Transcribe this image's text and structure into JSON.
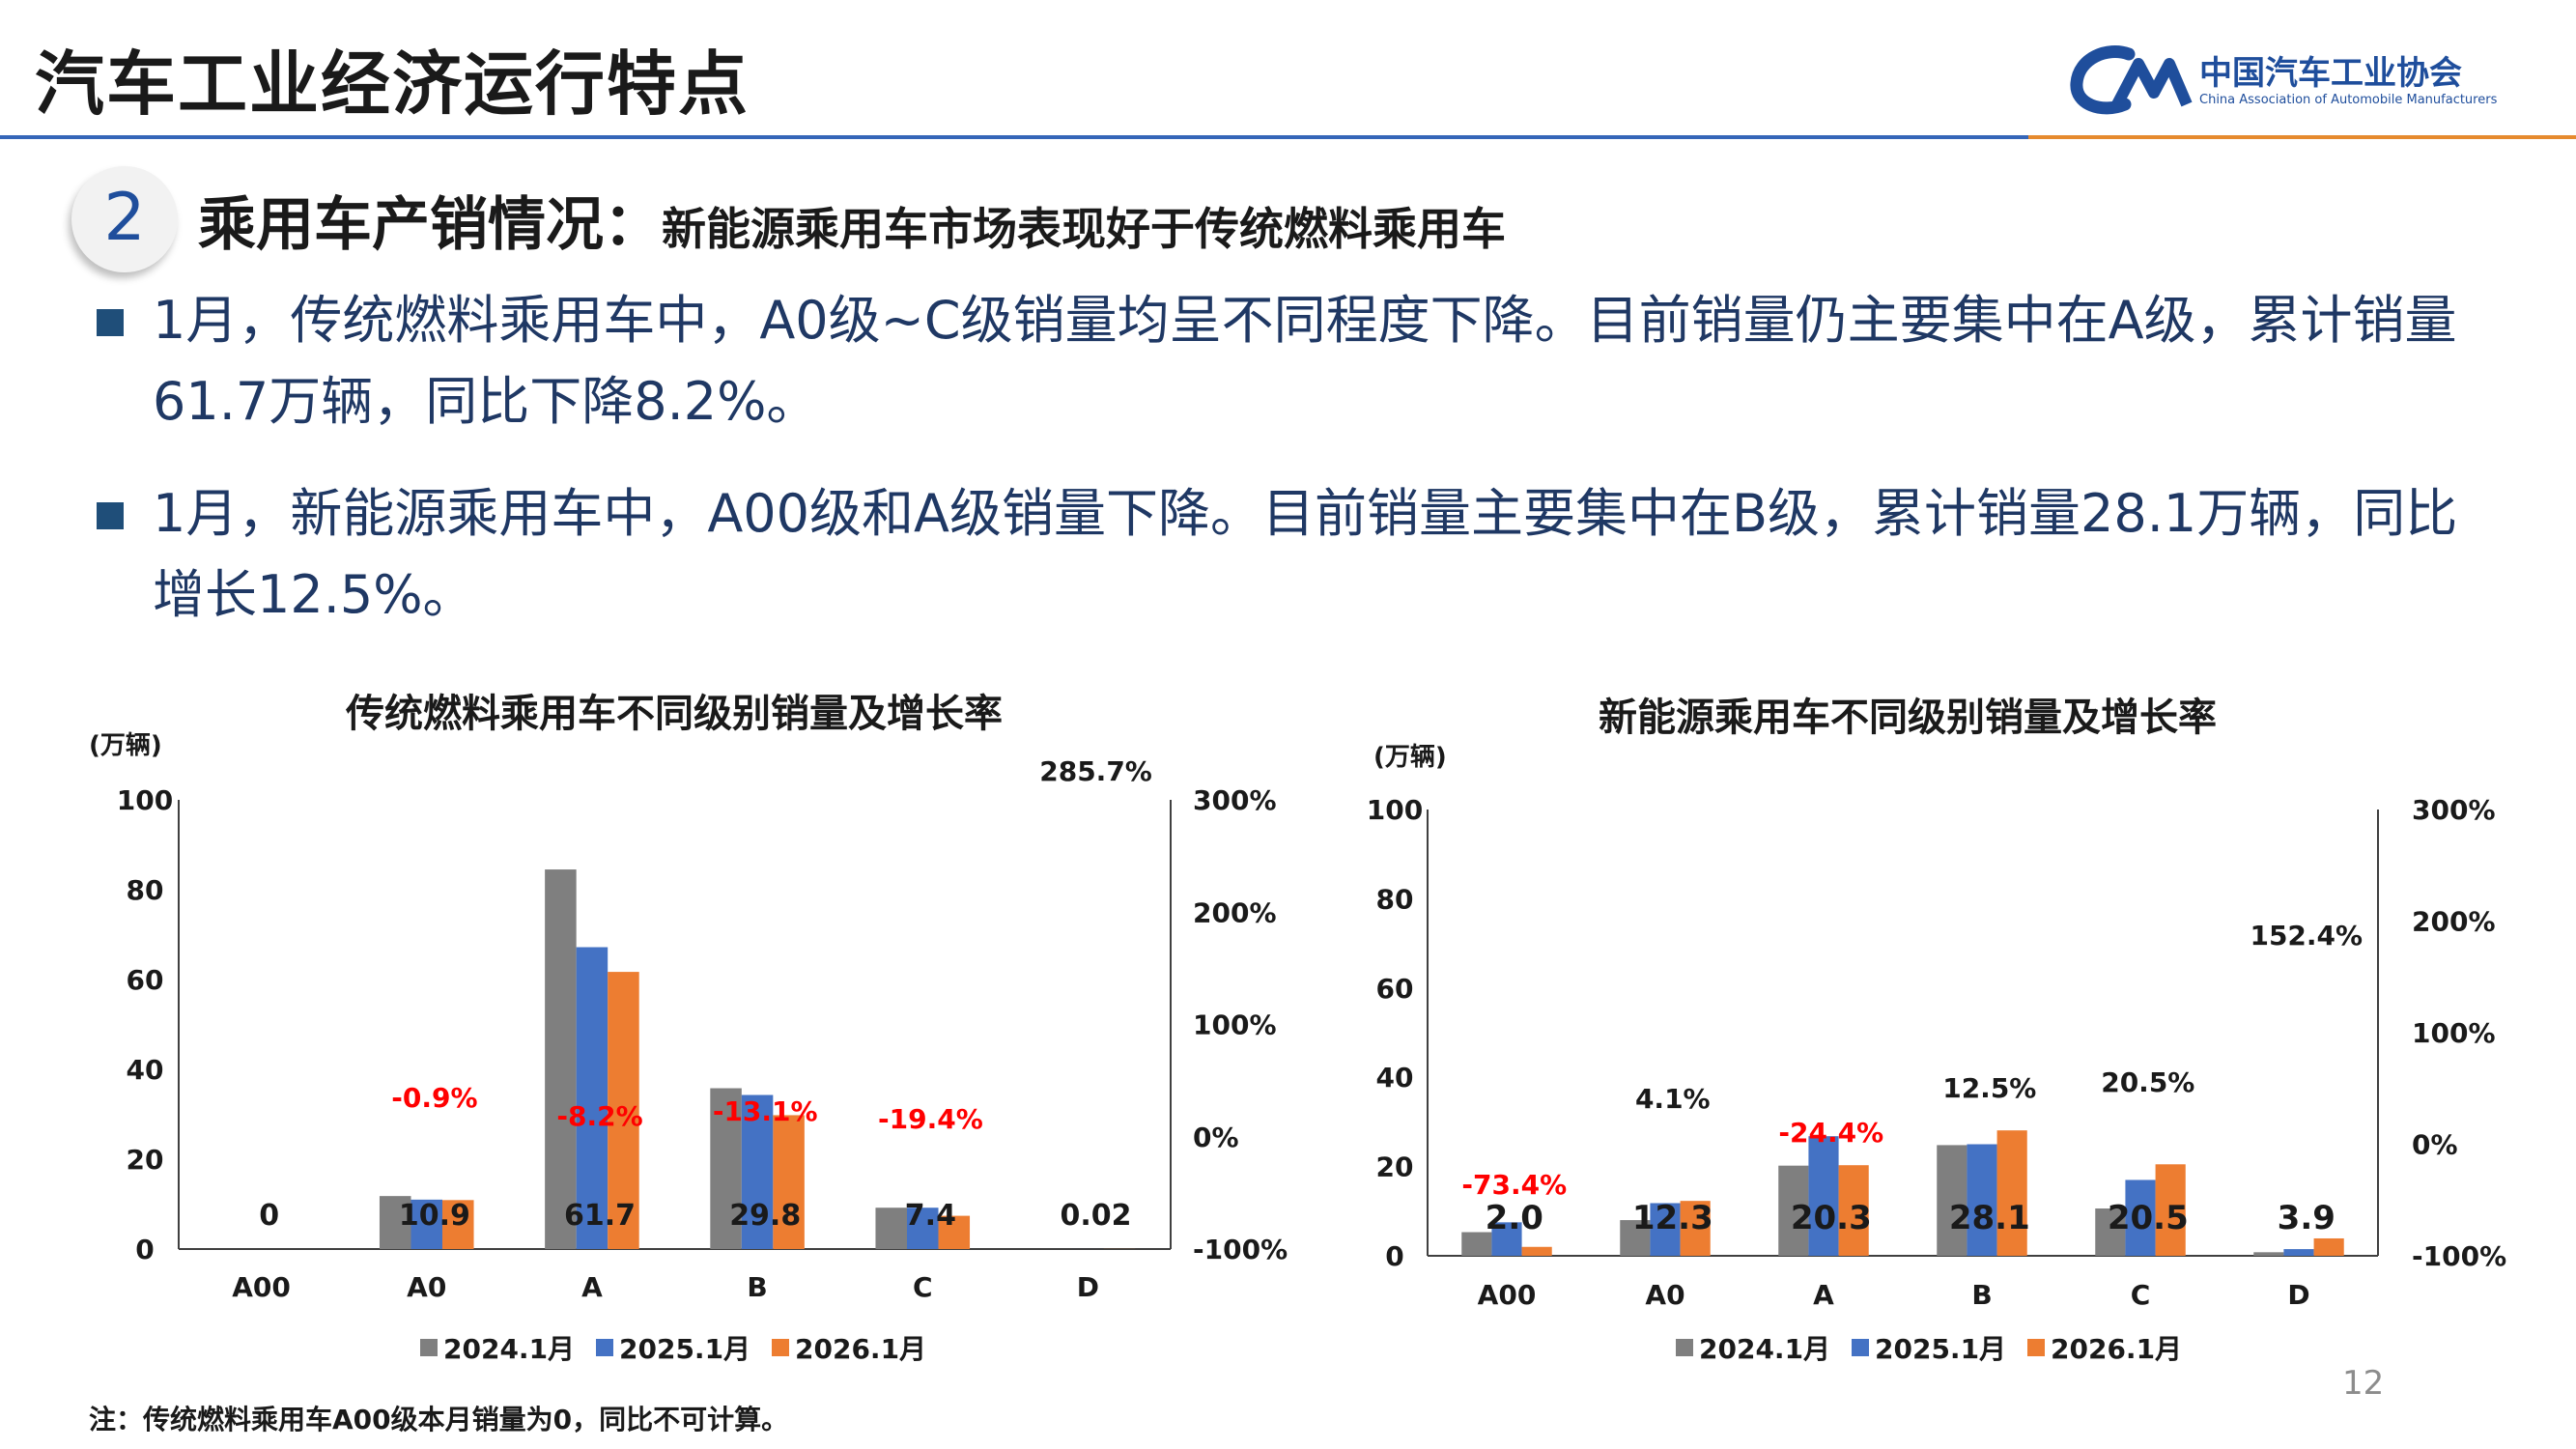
{
  "header": {
    "title": "汽车工业经济运行特点",
    "logo_cn": "中国汽车工业协会",
    "logo_en": "China Association of Automobile Manufacturers"
  },
  "section": {
    "number": "2",
    "title": "乘用车产销情况：",
    "subtitle": "新能源乘用车市场表现好于传统燃料乘用车"
  },
  "bullets": [
    "1月，传统燃料乘用车中，A0级~C级销量均呈不同程度下降。目前销量仍主要集中在A级，累计销量61.7万辆，同比下降8.2%。",
    "1月，新能源乘用车中，A00级和A级销量下降。目前销量主要集中在B级，累计销量28.1万辆，同比增长12.5%。"
  ],
  "colors": {
    "s2024": "#7f7f7f",
    "s2025": "#4472c4",
    "s2026": "#ed7d31",
    "negative": "#ff0000",
    "positive": "#1a1a1a"
  },
  "chart_data": [
    {
      "type": "bar",
      "title": "传统燃料乘用车不同级别销量及增长率",
      "ylabel": "(万辆)",
      "ylim": [
        0,
        100
      ],
      "yticks": [
        "0",
        "20",
        "40",
        "60",
        "80",
        "100"
      ],
      "y2lim": [
        -100,
        300
      ],
      "y2ticks": [
        "-100%",
        "0%",
        "100%",
        "200%",
        "300%"
      ],
      "categories": [
        "A00",
        "A0",
        "A",
        "B",
        "C",
        "D"
      ],
      "series": [
        {
          "name": "2024.1月",
          "values": [
            0,
            11.8,
            84.5,
            35.8,
            9.2,
            0.01
          ]
        },
        {
          "name": "2025.1月",
          "values": [
            0,
            11.0,
            67.2,
            34.3,
            9.2,
            0.005
          ]
        },
        {
          "name": "2026.1月",
          "values": [
            0,
            10.9,
            61.7,
            29.8,
            7.4,
            0.02
          ]
        }
      ],
      "value_labels": [
        "0",
        "10.9",
        "61.7",
        "29.8",
        "7.4",
        "0.02"
      ],
      "growth_labels": [
        "",
        "-0.9%",
        "-8.2%",
        "-13.1%",
        "-19.4%",
        "285.7%"
      ],
      "growth_values": [
        null,
        -0.9,
        -8.2,
        -13.1,
        -19.4,
        285.7
      ],
      "legend_position": "bottom"
    },
    {
      "type": "bar",
      "title": "新能源乘用车不同级别销量及增长率",
      "ylabel": "(万辆)",
      "ylim": [
        0,
        100
      ],
      "yticks": [
        "0",
        "20",
        "40",
        "60",
        "80",
        "100"
      ],
      "y2lim": [
        -100,
        300
      ],
      "y2ticks": [
        "-100%",
        "0%",
        "100%",
        "200%",
        "300%"
      ],
      "categories": [
        "A00",
        "A0",
        "A",
        "B",
        "C",
        "D"
      ],
      "series": [
        {
          "name": "2024.1月",
          "values": [
            5.3,
            8.0,
            20.2,
            24.8,
            10.6,
            0.8
          ]
        },
        {
          "name": "2025.1月",
          "values": [
            7.5,
            11.8,
            26.8,
            25.0,
            17.0,
            1.5
          ]
        },
        {
          "name": "2026.1月",
          "values": [
            2.0,
            12.3,
            20.3,
            28.1,
            20.5,
            3.9
          ]
        }
      ],
      "value_labels": [
        "2.0",
        "12.3",
        "20.3",
        "28.1",
        "20.5",
        "3.9"
      ],
      "growth_labels": [
        "-73.4%",
        "4.1%",
        "-24.4%",
        "12.5%",
        "20.5%",
        "152.4%"
      ],
      "growth_values": [
        -73.4,
        4.1,
        -24.4,
        12.5,
        20.5,
        152.4
      ],
      "legend_position": "bottom"
    }
  ],
  "note": "注：传统燃料乘用车A00级本月销量为0，同比不可计算。",
  "page_number": "12"
}
